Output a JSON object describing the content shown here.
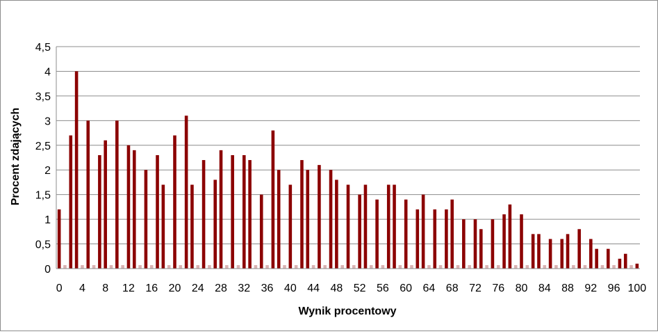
{
  "chart_data": {
    "type": "bar",
    "xlabel": "Wynik procentowy",
    "ylabel": "Procent zdających",
    "ylim": [
      0,
      4.5
    ],
    "y_ticks": [
      "0",
      "0,5",
      "1",
      "1,5",
      "2",
      "2,5",
      "3",
      "3,5",
      "4",
      "4,5"
    ],
    "x_ticks": [
      "0",
      "4",
      "8",
      "12",
      "16",
      "20",
      "24",
      "28",
      "32",
      "36",
      "40",
      "44",
      "48",
      "52",
      "56",
      "60",
      "64",
      "68",
      "72",
      "76",
      "80",
      "84",
      "88",
      "92",
      "96",
      "100"
    ],
    "grid": true,
    "bar_color": "#8b0000",
    "x": [
      0,
      1,
      2,
      3,
      4,
      5,
      6,
      7,
      8,
      9,
      10,
      11,
      12,
      13,
      14,
      15,
      16,
      17,
      18,
      19,
      20,
      21,
      22,
      23,
      24,
      25,
      26,
      27,
      28,
      29,
      30,
      31,
      32,
      33,
      34,
      35,
      36,
      37,
      38,
      39,
      40,
      41,
      42,
      43,
      44,
      45,
      46,
      47,
      48,
      49,
      50,
      51,
      52,
      53,
      54,
      55,
      56,
      57,
      58,
      59,
      60,
      61,
      62,
      63,
      64,
      65,
      66,
      67,
      68,
      69,
      70,
      71,
      72,
      73,
      74,
      75,
      76,
      77,
      78,
      79,
      80,
      81,
      82,
      83,
      84,
      85,
      86,
      87,
      88,
      89,
      90,
      91,
      92,
      93,
      94,
      95,
      96,
      97,
      98,
      99,
      100
    ],
    "values": [
      1.2,
      0,
      2.7,
      4.0,
      0,
      3.0,
      0,
      2.3,
      2.6,
      0,
      3.0,
      0,
      2.5,
      2.4,
      0,
      2.0,
      0,
      2.3,
      1.7,
      0,
      2.7,
      0,
      3.1,
      1.7,
      0,
      2.2,
      0,
      1.8,
      2.4,
      0,
      2.3,
      0,
      2.3,
      2.2,
      0,
      1.5,
      0,
      2.8,
      2.0,
      0,
      1.7,
      0,
      2.2,
      2.0,
      0,
      2.1,
      0,
      2.0,
      1.8,
      0,
      1.7,
      0,
      1.5,
      1.7,
      0,
      1.4,
      0,
      1.7,
      1.7,
      0,
      1.4,
      0,
      1.2,
      1.5,
      0,
      1.2,
      0,
      1.2,
      1.4,
      0,
      1.0,
      0,
      1.0,
      0.8,
      0,
      1.0,
      0,
      1.1,
      1.3,
      0,
      1.1,
      0,
      0.7,
      0.7,
      0,
      0.6,
      0,
      0.6,
      0.7,
      0,
      0.8,
      0,
      0.6,
      0.4,
      0,
      0.4,
      0,
      0.2,
      0.3,
      0,
      0.1
    ]
  }
}
